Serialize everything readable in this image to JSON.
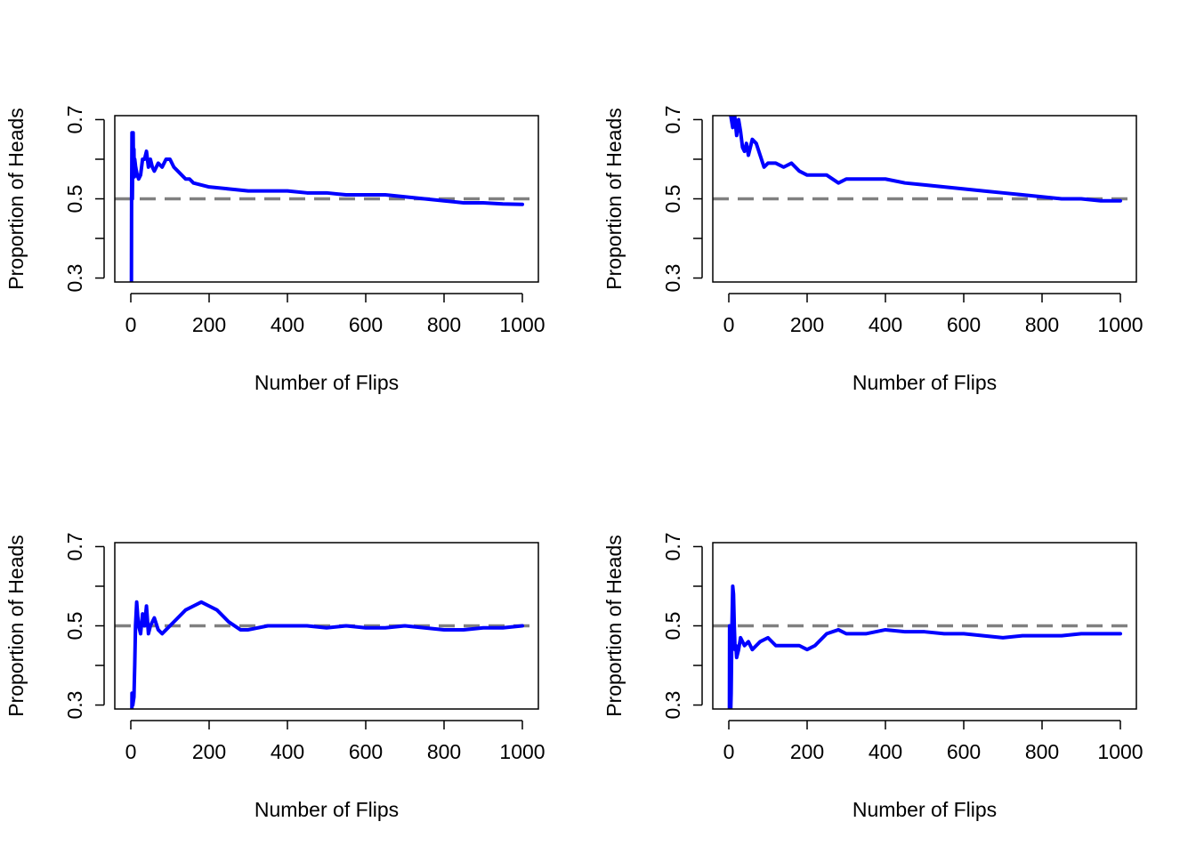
{
  "figure": {
    "layout": "2x2 grid"
  },
  "chart_data": [
    {
      "type": "line",
      "title": "",
      "xlabel": "Number of Flips",
      "ylabel": "Proportion of Heads",
      "xlim": [
        0,
        1000
      ],
      "ylim": [
        0.29,
        0.71
      ],
      "xticks": [
        0,
        200,
        400,
        600,
        800,
        1000
      ],
      "yticks": [
        0.3,
        0.4,
        0.5,
        0.6,
        0.7
      ],
      "ytick_labels": [
        "0.3",
        "",
        "0.5",
        "",
        "0.7"
      ],
      "reference_line": {
        "y": 0.5,
        "style": "dashed",
        "color": "#808080"
      },
      "series": [
        {
          "name": "Proportion of Heads",
          "color": "#0000ff",
          "x": [
            1,
            2,
            3,
            4,
            5,
            6,
            7,
            8,
            9,
            10,
            12,
            14,
            16,
            18,
            20,
            25,
            30,
            35,
            40,
            45,
            50,
            55,
            60,
            70,
            80,
            90,
            100,
            110,
            120,
            130,
            140,
            150,
            160,
            180,
            200,
            250,
            300,
            350,
            400,
            450,
            500,
            550,
            600,
            650,
            700,
            750,
            800,
            850,
            900,
            950,
            1000
          ],
          "y": [
            0.0,
            0.5,
            0.6667,
            0.5,
            0.6,
            0.6667,
            0.5714,
            0.625,
            0.5556,
            0.6,
            0.5833,
            0.5714,
            0.5625,
            0.5556,
            0.55,
            0.56,
            0.6,
            0.6,
            0.62,
            0.58,
            0.6,
            0.58,
            0.57,
            0.59,
            0.58,
            0.6,
            0.6,
            0.58,
            0.57,
            0.56,
            0.55,
            0.55,
            0.54,
            0.535,
            0.53,
            0.525,
            0.52,
            0.52,
            0.52,
            0.515,
            0.515,
            0.51,
            0.51,
            0.51,
            0.505,
            0.5,
            0.495,
            0.49,
            0.49,
            0.487,
            0.486
          ]
        }
      ]
    },
    {
      "type": "line",
      "title": "",
      "xlabel": "Number of Flips",
      "ylabel": "Proportion of Heads",
      "xlim": [
        0,
        1000
      ],
      "ylim": [
        0.29,
        0.71
      ],
      "xticks": [
        0,
        200,
        400,
        600,
        800,
        1000
      ],
      "yticks": [
        0.3,
        0.4,
        0.5,
        0.6,
        0.7
      ],
      "ytick_labels": [
        "0.3",
        "",
        "0.5",
        "",
        "0.7"
      ],
      "reference_line": {
        "y": 0.5,
        "style": "dashed",
        "color": "#808080"
      },
      "series": [
        {
          "name": "Proportion of Heads",
          "color": "#0000ff",
          "x": [
            5,
            10,
            15,
            20,
            25,
            30,
            35,
            40,
            45,
            50,
            55,
            60,
            70,
            80,
            90,
            100,
            120,
            140,
            160,
            180,
            200,
            220,
            250,
            280,
            300,
            350,
            400,
            450,
            500,
            550,
            600,
            650,
            700,
            750,
            800,
            850,
            900,
            950,
            1000
          ],
          "y": [
            0.71,
            0.68,
            0.71,
            0.66,
            0.7,
            0.67,
            0.63,
            0.62,
            0.64,
            0.61,
            0.63,
            0.65,
            0.64,
            0.61,
            0.58,
            0.59,
            0.59,
            0.58,
            0.59,
            0.57,
            0.56,
            0.56,
            0.56,
            0.54,
            0.55,
            0.55,
            0.55,
            0.54,
            0.535,
            0.53,
            0.525,
            0.52,
            0.515,
            0.51,
            0.505,
            0.5,
            0.5,
            0.495,
            0.495
          ]
        }
      ]
    },
    {
      "type": "line",
      "title": "",
      "xlabel": "Number of Flips",
      "ylabel": "Proportion of Heads",
      "xlim": [
        0,
        1000
      ],
      "ylim": [
        0.29,
        0.71
      ],
      "xticks": [
        0,
        200,
        400,
        600,
        800,
        1000
      ],
      "yticks": [
        0.3,
        0.4,
        0.5,
        0.6,
        0.7
      ],
      "ytick_labels": [
        "0.3",
        "",
        "0.5",
        "",
        "0.7"
      ],
      "reference_line": {
        "y": 0.5,
        "style": "dashed",
        "color": "#808080"
      },
      "series": [
        {
          "name": "Proportion of Heads",
          "color": "#0000ff",
          "x": [
            1,
            3,
            5,
            8,
            10,
            12,
            15,
            18,
            20,
            25,
            30,
            35,
            40,
            45,
            50,
            60,
            70,
            80,
            90,
            100,
            120,
            140,
            160,
            180,
            200,
            220,
            250,
            280,
            300,
            350,
            400,
            450,
            500,
            550,
            600,
            650,
            700,
            750,
            800,
            850,
            900,
            950,
            1000
          ],
          "y": [
            0.0,
            0.33,
            0.3,
            0.32,
            0.4,
            0.5,
            0.56,
            0.52,
            0.5,
            0.48,
            0.53,
            0.5,
            0.55,
            0.48,
            0.5,
            0.52,
            0.49,
            0.48,
            0.49,
            0.5,
            0.52,
            0.54,
            0.55,
            0.56,
            0.55,
            0.54,
            0.51,
            0.49,
            0.49,
            0.5,
            0.5,
            0.5,
            0.495,
            0.5,
            0.495,
            0.495,
            0.5,
            0.495,
            0.49,
            0.49,
            0.495,
            0.495,
            0.5
          ]
        }
      ]
    },
    {
      "type": "line",
      "title": "",
      "xlabel": "Number of Flips",
      "ylabel": "Proportion of Heads",
      "xlim": [
        0,
        1000
      ],
      "ylim": [
        0.29,
        0.71
      ],
      "xticks": [
        0,
        200,
        400,
        600,
        800,
        1000
      ],
      "yticks": [
        0.3,
        0.4,
        0.5,
        0.6,
        0.7
      ],
      "ytick_labels": [
        "0.3",
        "",
        "0.5",
        "",
        "0.7"
      ],
      "reference_line": {
        "y": 0.5,
        "style": "dashed",
        "color": "#808080"
      },
      "series": [
        {
          "name": "Proportion of Heads",
          "color": "#0000ff",
          "x": [
            1,
            2,
            4,
            6,
            8,
            10,
            12,
            14,
            16,
            18,
            20,
            25,
            30,
            40,
            50,
            60,
            70,
            80,
            100,
            120,
            140,
            160,
            180,
            200,
            220,
            250,
            280,
            300,
            350,
            400,
            450,
            500,
            550,
            600,
            650,
            700,
            750,
            800,
            850,
            900,
            950,
            1000
          ],
          "y": [
            0.0,
            0.5,
            0.25,
            0.33,
            0.5,
            0.6,
            0.58,
            0.5,
            0.44,
            0.45,
            0.42,
            0.44,
            0.47,
            0.45,
            0.46,
            0.44,
            0.45,
            0.46,
            0.47,
            0.45,
            0.45,
            0.45,
            0.45,
            0.44,
            0.45,
            0.48,
            0.49,
            0.48,
            0.48,
            0.49,
            0.485,
            0.485,
            0.48,
            0.48,
            0.475,
            0.47,
            0.475,
            0.475,
            0.475,
            0.48,
            0.48,
            0.48
          ]
        }
      ]
    }
  ]
}
